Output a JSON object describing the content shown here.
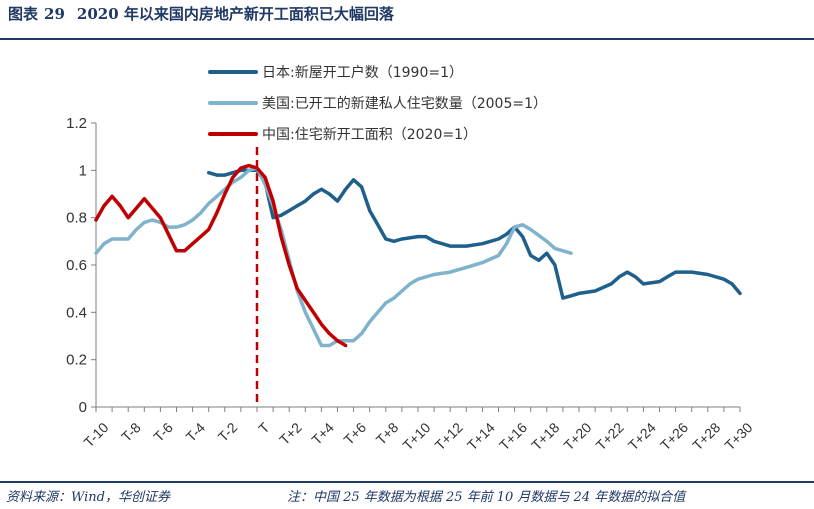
{
  "figure": {
    "label": "图表",
    "number": "29",
    "title": "2020 年以来国内房地产新开工面积已大幅回落"
  },
  "footer": {
    "source": "资料来源：Wind，华创证券",
    "note": "注：中国 25 年数据为根据 25 年前 10 月数据与 24 年数据的拟合值"
  },
  "chart_data": {
    "type": "line",
    "x": [
      "T-10",
      "T-9",
      "T-8",
      "T-7",
      "T-6",
      "T-5",
      "T-4",
      "T-3",
      "T-2",
      "T-1",
      "T",
      "T+1",
      "T+2",
      "T+3",
      "T+4",
      "T+5",
      "T+6",
      "T+7",
      "T+8",
      "T+9",
      "T+10",
      "T+11",
      "T+12",
      "T+13",
      "T+14",
      "T+15",
      "T+16",
      "T+17",
      "T+18",
      "T+19",
      "T+20",
      "T+21",
      "T+22",
      "T+23",
      "T+24",
      "T+25",
      "T+26",
      "T+27",
      "T+28",
      "T+29",
      "T+30"
    ],
    "xticks": [
      "T-10",
      "T-8",
      "T-6",
      "T-4",
      "T-2",
      "T",
      "T+2",
      "T+4",
      "T+6",
      "T+8",
      "T+10",
      "T+12",
      "T+14",
      "T+16",
      "T+18",
      "T+20",
      "T+22",
      "T+24",
      "T+26",
      "T+28",
      "T+30"
    ],
    "ylim": [
      0,
      1.2
    ],
    "yticks": [
      "0",
      "0.2",
      "0.4",
      "0.6",
      "0.8",
      "1",
      "1.2"
    ],
    "legend_position": "top",
    "reference_line": {
      "x": "T",
      "style": "dashed",
      "color": "#c00000"
    },
    "series": [
      {
        "name": "日本:新屋开工户数（1990=1）",
        "color": "#1f5f8b",
        "points": [
          [
            "T-3",
            0.99
          ],
          [
            "T-2.5",
            0.98
          ],
          [
            "T-2",
            0.98
          ],
          [
            "T-1.5",
            0.99
          ],
          [
            "T-1",
            1.0
          ],
          [
            "T",
            1.0
          ],
          [
            "T+0.5",
            0.95
          ],
          [
            "T+1",
            0.8
          ],
          [
            "T+1.5",
            0.81
          ],
          [
            "T+2",
            0.83
          ],
          [
            "T+2.5",
            0.85
          ],
          [
            "T+3",
            0.87
          ],
          [
            "T+3.5",
            0.9
          ],
          [
            "T+4",
            0.92
          ],
          [
            "T+4.5",
            0.9
          ],
          [
            "T+5",
            0.87
          ],
          [
            "T+5.5",
            0.92
          ],
          [
            "T+6",
            0.96
          ],
          [
            "T+6.5",
            0.93
          ],
          [
            "T+7",
            0.83
          ],
          [
            "T+7.5",
            0.77
          ],
          [
            "T+8",
            0.71
          ],
          [
            "T+8.5",
            0.7
          ],
          [
            "T+9",
            0.71
          ],
          [
            "T+10",
            0.72
          ],
          [
            "T+10.5",
            0.72
          ],
          [
            "T+11",
            0.7
          ],
          [
            "T+12",
            0.68
          ],
          [
            "T+13",
            0.68
          ],
          [
            "T+14",
            0.69
          ],
          [
            "T+15",
            0.71
          ],
          [
            "T+15.5",
            0.73
          ],
          [
            "T+16",
            0.76
          ],
          [
            "T+16.5",
            0.72
          ],
          [
            "T+17",
            0.64
          ],
          [
            "T+17.5",
            0.62
          ],
          [
            "T+18",
            0.65
          ],
          [
            "T+18.5",
            0.6
          ],
          [
            "T+19",
            0.46
          ],
          [
            "T+19.5",
            0.47
          ],
          [
            "T+20",
            0.48
          ],
          [
            "T+21",
            0.49
          ],
          [
            "T+22",
            0.52
          ],
          [
            "T+22.5",
            0.55
          ],
          [
            "T+23",
            0.57
          ],
          [
            "T+23.5",
            0.55
          ],
          [
            "T+24",
            0.52
          ],
          [
            "T+25",
            0.53
          ],
          [
            "T+25.5",
            0.55
          ],
          [
            "T+26",
            0.57
          ],
          [
            "T+27",
            0.57
          ],
          [
            "T+28",
            0.56
          ],
          [
            "T+29",
            0.54
          ],
          [
            "T+29.5",
            0.52
          ],
          [
            "T+30",
            0.48
          ]
        ]
      },
      {
        "name": "美国:已开工的新建私人住宅数量（2005=1）",
        "color": "#7fb2cc",
        "points": [
          [
            "T-10",
            0.65
          ],
          [
            "T-9.5",
            0.69
          ],
          [
            "T-9",
            0.71
          ],
          [
            "T-8.5",
            0.71
          ],
          [
            "T-8",
            0.71
          ],
          [
            "T-7.5",
            0.75
          ],
          [
            "T-7",
            0.78
          ],
          [
            "T-6.5",
            0.79
          ],
          [
            "T-6",
            0.78
          ],
          [
            "T-5.5",
            0.76
          ],
          [
            "T-5",
            0.76
          ],
          [
            "T-4.5",
            0.77
          ],
          [
            "T-4",
            0.79
          ],
          [
            "T-3.5",
            0.82
          ],
          [
            "T-3",
            0.86
          ],
          [
            "T-2.5",
            0.89
          ],
          [
            "T-2",
            0.92
          ],
          [
            "T-1.5",
            0.95
          ],
          [
            "T-1",
            0.97
          ],
          [
            "T-0.5",
            1.0
          ],
          [
            "T",
            1.01
          ],
          [
            "T+0.5",
            0.94
          ],
          [
            "T+1",
            0.85
          ],
          [
            "T+1.5",
            0.75
          ],
          [
            "T+2",
            0.62
          ],
          [
            "T+2.5",
            0.49
          ],
          [
            "T+3",
            0.4
          ],
          [
            "T+3.5",
            0.33
          ],
          [
            "T+4",
            0.26
          ],
          [
            "T+4.5",
            0.26
          ],
          [
            "T+5",
            0.28
          ],
          [
            "T+5.5",
            0.28
          ],
          [
            "T+6",
            0.28
          ],
          [
            "T+6.5",
            0.31
          ],
          [
            "T+7",
            0.36
          ],
          [
            "T+7.5",
            0.4
          ],
          [
            "T+8",
            0.44
          ],
          [
            "T+8.5",
            0.46
          ],
          [
            "T+9",
            0.49
          ],
          [
            "T+9.5",
            0.52
          ],
          [
            "T+10",
            0.54
          ],
          [
            "T+11",
            0.56
          ],
          [
            "T+12",
            0.57
          ],
          [
            "T+13",
            0.59
          ],
          [
            "T+14",
            0.61
          ],
          [
            "T+15",
            0.64
          ],
          [
            "T+15.5",
            0.69
          ],
          [
            "T+16",
            0.76
          ],
          [
            "T+16.5",
            0.77
          ],
          [
            "T+17",
            0.75
          ],
          [
            "T+18",
            0.7
          ],
          [
            "T+18.5",
            0.67
          ],
          [
            "T+19",
            0.66
          ],
          [
            "T+19.5",
            0.65
          ]
        ]
      },
      {
        "name": "中国:住宅新开工面积（2020=1）",
        "color": "#c00000",
        "points": [
          [
            "T-10",
            0.79
          ],
          [
            "T-9.5",
            0.85
          ],
          [
            "T-9",
            0.89
          ],
          [
            "T-8.5",
            0.85
          ],
          [
            "T-8",
            0.8
          ],
          [
            "T-7.5",
            0.84
          ],
          [
            "T-7",
            0.88
          ],
          [
            "T-6.5",
            0.84
          ],
          [
            "T-6",
            0.8
          ],
          [
            "T-5.5",
            0.73
          ],
          [
            "T-5",
            0.66
          ],
          [
            "T-4.5",
            0.66
          ],
          [
            "T-4",
            0.69
          ],
          [
            "T-3.5",
            0.72
          ],
          [
            "T-3",
            0.75
          ],
          [
            "T-2.5",
            0.82
          ],
          [
            "T-2",
            0.9
          ],
          [
            "T-1.5",
            0.97
          ],
          [
            "T-1",
            1.01
          ],
          [
            "T-0.5",
            1.02
          ],
          [
            "T",
            1.01
          ],
          [
            "T+0.5",
            0.97
          ],
          [
            "T+1",
            0.87
          ],
          [
            "T+1.5",
            0.72
          ],
          [
            "T+2",
            0.6
          ],
          [
            "T+2.5",
            0.5
          ],
          [
            "T+3",
            0.45
          ],
          [
            "T+3.5",
            0.4
          ],
          [
            "T+4",
            0.35
          ],
          [
            "T+4.5",
            0.31
          ],
          [
            "T+5",
            0.28
          ],
          [
            "T+5.5",
            0.26
          ]
        ]
      }
    ]
  }
}
